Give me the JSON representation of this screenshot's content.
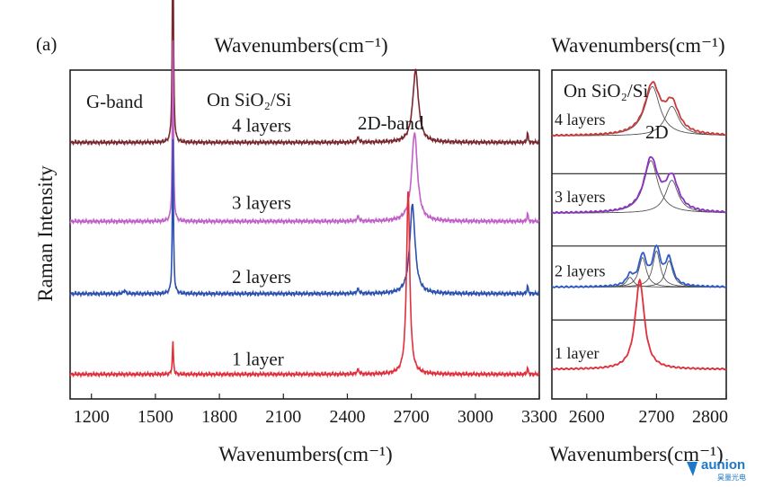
{
  "panel_label": "(a)",
  "logo": {
    "word": "aunion",
    "sub": "昊量光电",
    "color": "#1e78c8"
  },
  "chart_data": [
    {
      "type": "line",
      "top_xlabel": "Wavenumbers(cm⁻¹)",
      "xlabel": "Wavenumbers(cm⁻¹)",
      "ylabel": "Raman Intensity",
      "xlim": [
        1100,
        3300
      ],
      "xticks": [
        1200,
        1500,
        1800,
        2100,
        2400,
        2700,
        3000,
        3300
      ],
      "annotations": {
        "substrate": "On SiO₂/Si",
        "g_band": "G-band",
        "d2_band": "2D-band"
      },
      "series": [
        {
          "name": "4 layers",
          "color": "#7a2830",
          "baseline": 0.78,
          "peaks": [
            {
              "x": 1582,
              "h": 0.72,
              "w": 6
            },
            {
              "x": 2720,
              "h": 0.22,
              "w": 32
            },
            {
              "x": 2450,
              "h": 0.012,
              "w": 14
            },
            {
              "x": 3245,
              "h": 0.03,
              "w": 6
            }
          ]
        },
        {
          "name": "3 layers",
          "color": "#c060c8",
          "baseline": 0.54,
          "peaks": [
            {
              "x": 1582,
              "h": 0.55,
              "w": 6
            },
            {
              "x": 2715,
              "h": 0.27,
              "w": 32
            },
            {
              "x": 2450,
              "h": 0.012,
              "w": 14
            },
            {
              "x": 3245,
              "h": 0.025,
              "w": 6
            }
          ]
        },
        {
          "name": "2 layers",
          "color": "#2a50b0",
          "baseline": 0.32,
          "peaks": [
            {
              "x": 1582,
              "h": 0.47,
              "w": 6
            },
            {
              "x": 2705,
              "h": 0.27,
              "w": 30
            },
            {
              "x": 1355,
              "h": 0.01,
              "w": 12
            },
            {
              "x": 2450,
              "h": 0.012,
              "w": 14
            },
            {
              "x": 3245,
              "h": 0.025,
              "w": 6
            }
          ]
        },
        {
          "name": "1 layer",
          "color": "#e0303c",
          "baseline": 0.075,
          "peaks": [
            {
              "x": 1582,
              "h": 0.1,
              "w": 6
            },
            {
              "x": 2685,
              "h": 0.56,
              "w": 18
            },
            {
              "x": 2450,
              "h": 0.012,
              "w": 14
            },
            {
              "x": 3245,
              "h": 0.02,
              "w": 6
            }
          ]
        }
      ]
    },
    {
      "type": "line",
      "top_xlabel": "Wavenumbers(cm⁻¹)",
      "xlabel": "Wavenumbers(cm⁻¹)",
      "xlim": [
        2550,
        2800
      ],
      "xticks": [
        2600,
        2700,
        2800
      ],
      "annotations": {
        "substrate": "On SiO₂/Si",
        "band": "2D"
      },
      "series": [
        {
          "name": "4 layers",
          "color": "#c83a3a",
          "baseline": 0.8,
          "components": [
            {
              "x": 2694,
              "h": 0.15,
              "w": 26
            },
            {
              "x": 2722,
              "h": 0.09,
              "w": 24
            }
          ]
        },
        {
          "name": "3 layers",
          "color": "#8a32c0",
          "baseline": 0.565,
          "components": [
            {
              "x": 2692,
              "h": 0.16,
              "w": 24
            },
            {
              "x": 2722,
              "h": 0.1,
              "w": 22
            }
          ]
        },
        {
          "name": "2 layers",
          "color": "#2f5cc8",
          "baseline": 0.34,
          "components": [
            {
              "x": 2680,
              "h": 0.09,
              "w": 13
            },
            {
              "x": 2700,
              "h": 0.11,
              "w": 13
            },
            {
              "x": 2718,
              "h": 0.08,
              "w": 13
            },
            {
              "x": 2662,
              "h": 0.03,
              "w": 12
            }
          ]
        },
        {
          "name": "1 layer",
          "color": "#e0303c",
          "baseline": 0.09,
          "components": [
            {
              "x": 2676,
              "h": 0.27,
              "w": 16
            }
          ]
        }
      ]
    }
  ]
}
